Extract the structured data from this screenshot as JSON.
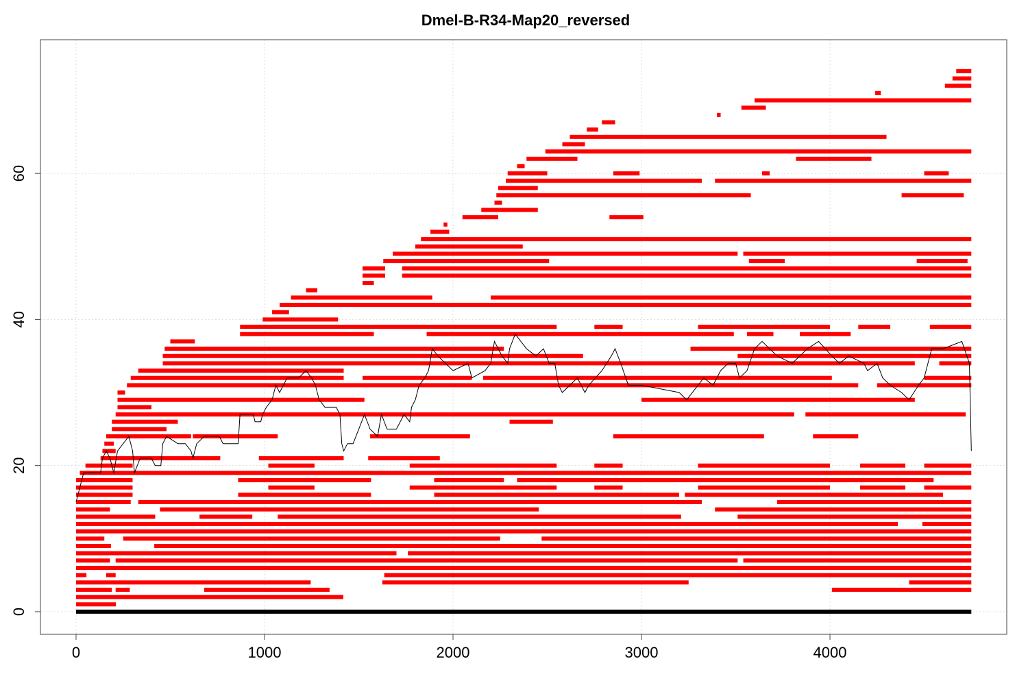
{
  "chart_data": {
    "type": "segments",
    "title": "Dmel-B-R34-Map20_reversed",
    "xlim": [
      -189,
      4938
    ],
    "ylim": [
      -3.1,
      78.3
    ],
    "xticks": [
      0,
      1000,
      2000,
      3000,
      4000
    ],
    "yticks": [
      0,
      20,
      40,
      60
    ],
    "grid": true,
    "segment_color": "#ff0000",
    "baseline": {
      "color": "#000000",
      "y": 0,
      "spans": [
        [
          0,
          4750
        ]
      ]
    },
    "rows": [
      {
        "y": 1,
        "spans": [
          [
            0,
            211
          ]
        ]
      },
      {
        "y": 2,
        "spans": [
          [
            0,
            1418
          ]
        ]
      },
      {
        "y": 3,
        "spans": [
          [
            0,
            190
          ],
          [
            210,
            285
          ],
          [
            680,
            1345
          ],
          [
            4010,
            4750
          ]
        ]
      },
      {
        "y": 4,
        "spans": [
          [
            0,
            1245
          ],
          [
            1625,
            3250
          ],
          [
            4420,
            4750
          ]
        ]
      },
      {
        "y": 5,
        "spans": [
          [
            0,
            55
          ],
          [
            160,
            210
          ],
          [
            1635,
            4750
          ]
        ]
      },
      {
        "y": 6,
        "spans": [
          [
            0,
            4750
          ]
        ]
      },
      {
        "y": 7,
        "spans": [
          [
            0,
            180
          ],
          [
            210,
            3510
          ],
          [
            3540,
            4750
          ]
        ]
      },
      {
        "y": 8,
        "spans": [
          [
            0,
            1700
          ],
          [
            1760,
            4750
          ]
        ]
      },
      {
        "y": 9,
        "spans": [
          [
            0,
            185
          ],
          [
            415,
            4750
          ]
        ]
      },
      {
        "y": 10,
        "spans": [
          [
            0,
            150
          ],
          [
            250,
            2250
          ],
          [
            2470,
            4750
          ]
        ]
      },
      {
        "y": 11,
        "spans": [
          [
            0,
            4750
          ]
        ]
      },
      {
        "y": 12,
        "spans": [
          [
            0,
            4360
          ],
          [
            4490,
            4750
          ]
        ]
      },
      {
        "y": 13,
        "spans": [
          [
            0,
            420
          ],
          [
            655,
            935
          ],
          [
            1070,
            3210
          ],
          [
            3510,
            4750
          ]
        ]
      },
      {
        "y": 14,
        "spans": [
          [
            0,
            180
          ],
          [
            445,
            2455
          ],
          [
            3390,
            4750
          ]
        ]
      },
      {
        "y": 15,
        "spans": [
          [
            0,
            290
          ],
          [
            330,
            3320
          ],
          [
            3720,
            4750
          ]
        ]
      },
      {
        "y": 16,
        "spans": [
          [
            0,
            300
          ],
          [
            860,
            1565
          ],
          [
            1900,
            3200
          ],
          [
            3230,
            4600
          ]
        ]
      },
      {
        "y": 17,
        "spans": [
          [
            0,
            300
          ],
          [
            1020,
            1265
          ],
          [
            1770,
            2550
          ],
          [
            2750,
            2900
          ],
          [
            3300,
            4000
          ],
          [
            4160,
            4400
          ],
          [
            4500,
            4750
          ]
        ]
      },
      {
        "y": 18,
        "spans": [
          [
            0,
            300
          ],
          [
            860,
            1565
          ],
          [
            1900,
            2270
          ],
          [
            2340,
            4550
          ]
        ]
      },
      {
        "y": 19,
        "spans": [
          [
            20,
            4750
          ]
        ]
      },
      {
        "y": 20,
        "spans": [
          [
            50,
            300
          ],
          [
            1020,
            1265
          ],
          [
            1770,
            2550
          ],
          [
            2750,
            2900
          ],
          [
            3300,
            4000
          ],
          [
            4160,
            4400
          ],
          [
            4500,
            4750
          ]
        ]
      },
      {
        "y": 21,
        "spans": [
          [
            130,
            765
          ],
          [
            970,
            1420
          ],
          [
            1550,
            1930
          ]
        ]
      },
      {
        "y": 22,
        "spans": [
          [
            140,
            210
          ]
        ]
      },
      {
        "y": 23,
        "spans": [
          [
            150,
            200
          ]
        ]
      },
      {
        "y": 24,
        "spans": [
          [
            160,
            610
          ],
          [
            620,
            1070
          ],
          [
            1560,
            2090
          ],
          [
            2850,
            3650
          ],
          [
            3910,
            4150
          ]
        ]
      },
      {
        "y": 25,
        "spans": [
          [
            190,
            480
          ]
        ]
      },
      {
        "y": 26,
        "spans": [
          [
            190,
            540
          ],
          [
            2300,
            2530
          ]
        ]
      },
      {
        "y": 27,
        "spans": [
          [
            210,
            3810
          ],
          [
            3870,
            4720
          ]
        ]
      },
      {
        "y": 28,
        "spans": [
          [
            220,
            400
          ]
        ]
      },
      {
        "y": 29,
        "spans": [
          [
            220,
            1530
          ],
          [
            3000,
            4450
          ]
        ]
      },
      {
        "y": 30,
        "spans": [
          [
            220,
            260
          ]
        ]
      },
      {
        "y": 31,
        "spans": [
          [
            270,
            4150
          ],
          [
            4250,
            4750
          ]
        ]
      },
      {
        "y": 32,
        "spans": [
          [
            290,
            1420
          ],
          [
            1520,
            2100
          ],
          [
            2160,
            4010
          ],
          [
            4500,
            4750
          ]
        ]
      },
      {
        "y": 33,
        "spans": [
          [
            330,
            1420
          ]
        ]
      },
      {
        "y": 34,
        "spans": [
          [
            460,
            4450
          ],
          [
            4580,
            4750
          ]
        ]
      },
      {
        "y": 35,
        "spans": [
          [
            460,
            2690
          ],
          [
            3510,
            4750
          ]
        ]
      },
      {
        "y": 36,
        "spans": [
          [
            470,
            2270
          ],
          [
            3260,
            4750
          ]
        ]
      },
      {
        "y": 37,
        "spans": [
          [
            500,
            630
          ]
        ]
      },
      {
        "y": 38,
        "spans": [
          [
            870,
            1580
          ],
          [
            1860,
            3490
          ],
          [
            3560,
            3700
          ],
          [
            3840,
            4110
          ]
        ]
      },
      {
        "y": 39,
        "spans": [
          [
            870,
            2550
          ],
          [
            2750,
            2900
          ],
          [
            3300,
            4000
          ],
          [
            4150,
            4320
          ],
          [
            4530,
            4750
          ]
        ]
      },
      {
        "y": 40,
        "spans": [
          [
            990,
            1390
          ]
        ]
      },
      {
        "y": 41,
        "spans": [
          [
            1040,
            1130
          ]
        ]
      },
      {
        "y": 42,
        "spans": [
          [
            1080,
            4750
          ]
        ]
      },
      {
        "y": 43,
        "spans": [
          [
            1140,
            1890
          ],
          [
            2200,
            4750
          ]
        ]
      },
      {
        "y": 44,
        "spans": [
          [
            1220,
            1280
          ]
        ]
      },
      {
        "y": 45,
        "spans": [
          [
            1520,
            1580
          ]
        ]
      },
      {
        "y": 46,
        "spans": [
          [
            1520,
            1640
          ],
          [
            1730,
            4750
          ]
        ]
      },
      {
        "y": 47,
        "spans": [
          [
            1520,
            1640
          ],
          [
            1730,
            4750
          ]
        ]
      },
      {
        "y": 48,
        "spans": [
          [
            1630,
            2510
          ],
          [
            3570,
            3760
          ],
          [
            4460,
            4730
          ]
        ]
      },
      {
        "y": 49,
        "spans": [
          [
            1680,
            3510
          ],
          [
            3540,
            4750
          ]
        ]
      },
      {
        "y": 50,
        "spans": [
          [
            1800,
            2370
          ]
        ]
      },
      {
        "y": 51,
        "spans": [
          [
            1830,
            4750
          ]
        ]
      },
      {
        "y": 52,
        "spans": [
          [
            1880,
            1980
          ]
        ]
      },
      {
        "y": 53,
        "spans": [
          [
            1950,
            1970
          ]
        ]
      },
      {
        "y": 54,
        "spans": [
          [
            2050,
            2240
          ],
          [
            2830,
            3010
          ]
        ]
      },
      {
        "y": 55,
        "spans": [
          [
            2150,
            2450
          ]
        ]
      },
      {
        "y": 56,
        "spans": [
          [
            2220,
            2260
          ]
        ]
      },
      {
        "y": 57,
        "spans": [
          [
            2230,
            3580
          ],
          [
            4380,
            4710
          ]
        ]
      },
      {
        "y": 58,
        "spans": [
          [
            2240,
            2450
          ]
        ]
      },
      {
        "y": 59,
        "spans": [
          [
            2280,
            3320
          ],
          [
            3390,
            4750
          ]
        ]
      },
      {
        "y": 60,
        "spans": [
          [
            2290,
            2500
          ],
          [
            2850,
            2990
          ],
          [
            3640,
            3680
          ],
          [
            4500,
            4630
          ]
        ]
      },
      {
        "y": 61,
        "spans": [
          [
            2340,
            2380
          ]
        ]
      },
      {
        "y": 62,
        "spans": [
          [
            2390,
            2660
          ],
          [
            3820,
            4220
          ]
        ]
      },
      {
        "y": 63,
        "spans": [
          [
            2490,
            4750
          ]
        ]
      },
      {
        "y": 64,
        "spans": [
          [
            2580,
            2700
          ]
        ]
      },
      {
        "y": 65,
        "spans": [
          [
            2620,
            4300
          ]
        ]
      },
      {
        "y": 66,
        "spans": [
          [
            2710,
            2770
          ]
        ]
      },
      {
        "y": 67,
        "spans": [
          [
            2790,
            2860
          ]
        ]
      },
      {
        "y": 68,
        "spans": [
          [
            3400,
            3420
          ]
        ]
      },
      {
        "y": 69,
        "spans": [
          [
            3530,
            3660
          ]
        ]
      },
      {
        "y": 70,
        "spans": [
          [
            3600,
            4750
          ]
        ]
      },
      {
        "y": 71,
        "spans": [
          [
            4240,
            4270
          ]
        ]
      },
      {
        "y": 72,
        "spans": [
          [
            4610,
            4750
          ]
        ]
      },
      {
        "y": 73,
        "spans": [
          [
            4650,
            4750
          ]
        ]
      },
      {
        "y": 74,
        "spans": [
          [
            4670,
            4750
          ]
        ]
      }
    ],
    "coverage": {
      "color": "#000000",
      "x": [
        0,
        20,
        40,
        60,
        130,
        140,
        160,
        180,
        200,
        220,
        250,
        280,
        300,
        310,
        340,
        400,
        420,
        450,
        460,
        480,
        540,
        580,
        610,
        620,
        640,
        680,
        760,
        780,
        860,
        870,
        940,
        950,
        980,
        990,
        1010,
        1040,
        1060,
        1080,
        1100,
        1120,
        1180,
        1220,
        1250,
        1270,
        1290,
        1320,
        1380,
        1400,
        1410,
        1420,
        1440,
        1470,
        1500,
        1530,
        1560,
        1600,
        1620,
        1650,
        1700,
        1740,
        1770,
        1780,
        1800,
        1820,
        1850,
        1870,
        1890,
        1920,
        1960,
        2000,
        2080,
        2100,
        2170,
        2200,
        2220,
        2240,
        2260,
        2290,
        2300,
        2330,
        2360,
        2390,
        2440,
        2480,
        2510,
        2540,
        2560,
        2580,
        2620,
        2660,
        2700,
        2720,
        2790,
        2840,
        2860,
        2890,
        2930,
        3000,
        3200,
        3240,
        3300,
        3330,
        3380,
        3420,
        3460,
        3500,
        3520,
        3560,
        3600,
        3640,
        3680,
        3720,
        3800,
        3880,
        3940,
        4010,
        4050,
        4100,
        4180,
        4200,
        4250,
        4280,
        4320,
        4380,
        4420,
        4470,
        4500,
        4520,
        4540,
        4600,
        4700,
        4740,
        4750
      ],
      "y": [
        15,
        17,
        19,
        19,
        19,
        21,
        22,
        21,
        19,
        22,
        23,
        24,
        22,
        19,
        21,
        21,
        20,
        20,
        23,
        24,
        23,
        23,
        22,
        21,
        23,
        24,
        24,
        23,
        23,
        27,
        27,
        26,
        26,
        27,
        28,
        29,
        31,
        30,
        31,
        32,
        32,
        33,
        32,
        31,
        29,
        28,
        28,
        27,
        23,
        22,
        23,
        23,
        25,
        27,
        25,
        24,
        27,
        25,
        25,
        27,
        26,
        28,
        29,
        31,
        32,
        33,
        36,
        35,
        34,
        33,
        34,
        32,
        33,
        34,
        37,
        36,
        35,
        34,
        36,
        38,
        37,
        36,
        35,
        36,
        34,
        34,
        31,
        30,
        31,
        32,
        30,
        31,
        33,
        35,
        36,
        34,
        31,
        31,
        30,
        29,
        31,
        32,
        31,
        33,
        34,
        34,
        32,
        33,
        36,
        37,
        36,
        35,
        34,
        36,
        37,
        35,
        34,
        35,
        34,
        33,
        34,
        32,
        31,
        30,
        29,
        31,
        32,
        34,
        36,
        36,
        37,
        34,
        22
      ]
    }
  }
}
